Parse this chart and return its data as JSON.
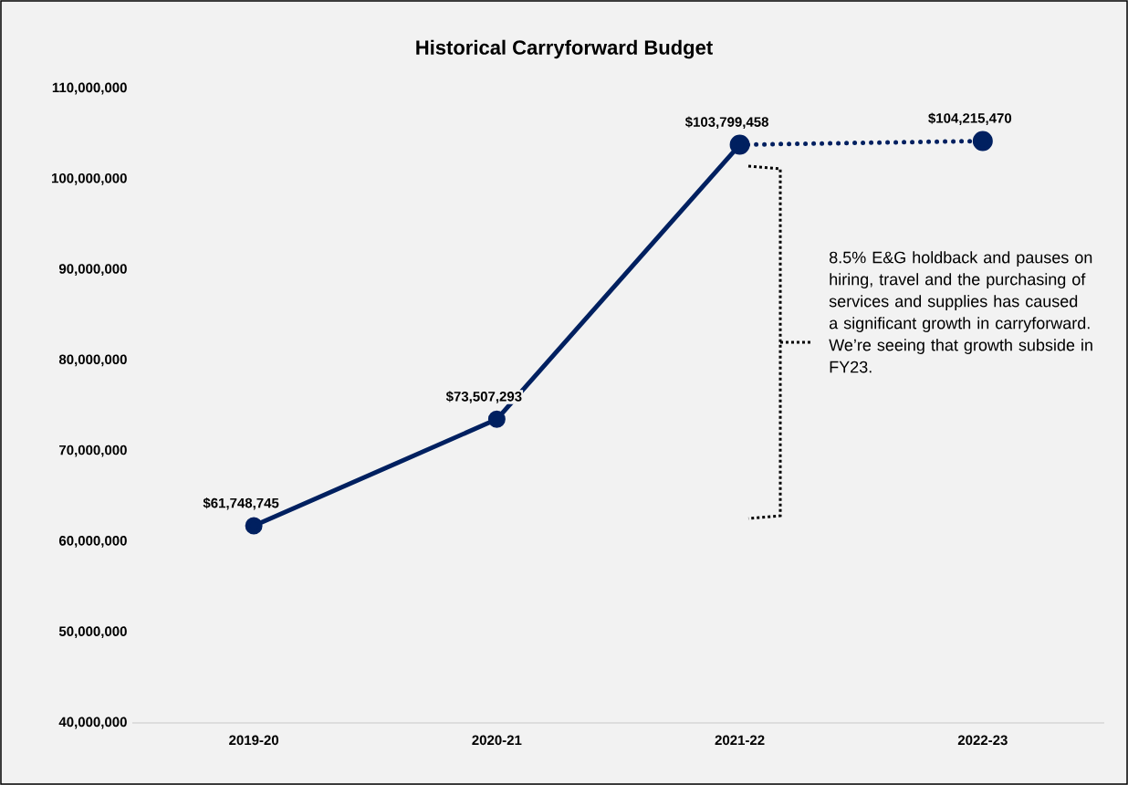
{
  "chart_data": {
    "type": "line",
    "title": "Historical Carryforward Budget",
    "categories": [
      "2019-20",
      "2020-21",
      "2021-22",
      "2022-23"
    ],
    "series": [
      {
        "color": "#002060",
        "line_style": "solid",
        "values": [
          61748745,
          73507293,
          103799458,
          null
        ],
        "value_labels": [
          "$61,748,745",
          "$73,507,293",
          "$103,799,458",
          null
        ]
      },
      {
        "color": "#002060",
        "line_style": "dotted",
        "values": [
          null,
          null,
          103799458,
          104215470
        ],
        "value_labels": [
          null,
          null,
          null,
          "$104,215,470"
        ]
      }
    ],
    "marker": "circle",
    "ylim": [
      40000000,
      110000000
    ],
    "yticks": [
      {
        "value": 40000000,
        "label": "40,000,000"
      },
      {
        "value": 50000000,
        "label": "50,000,000"
      },
      {
        "value": 60000000,
        "label": "60,000,000"
      },
      {
        "value": 70000000,
        "label": "70,000,000"
      },
      {
        "value": 80000000,
        "label": "80,000,000"
      },
      {
        "value": 90000000,
        "label": "90,000,000"
      },
      {
        "value": 100000000,
        "label": "100,000,000"
      },
      {
        "value": 110000000,
        "label": "110,000,000"
      }
    ],
    "annotations": [
      "8.5% E&G holdback and pauses on hiring, travel and the purchasing of services and supplies has caused a significant growth in carryforward. We’re seeing that growth subside in FY23."
    ]
  }
}
